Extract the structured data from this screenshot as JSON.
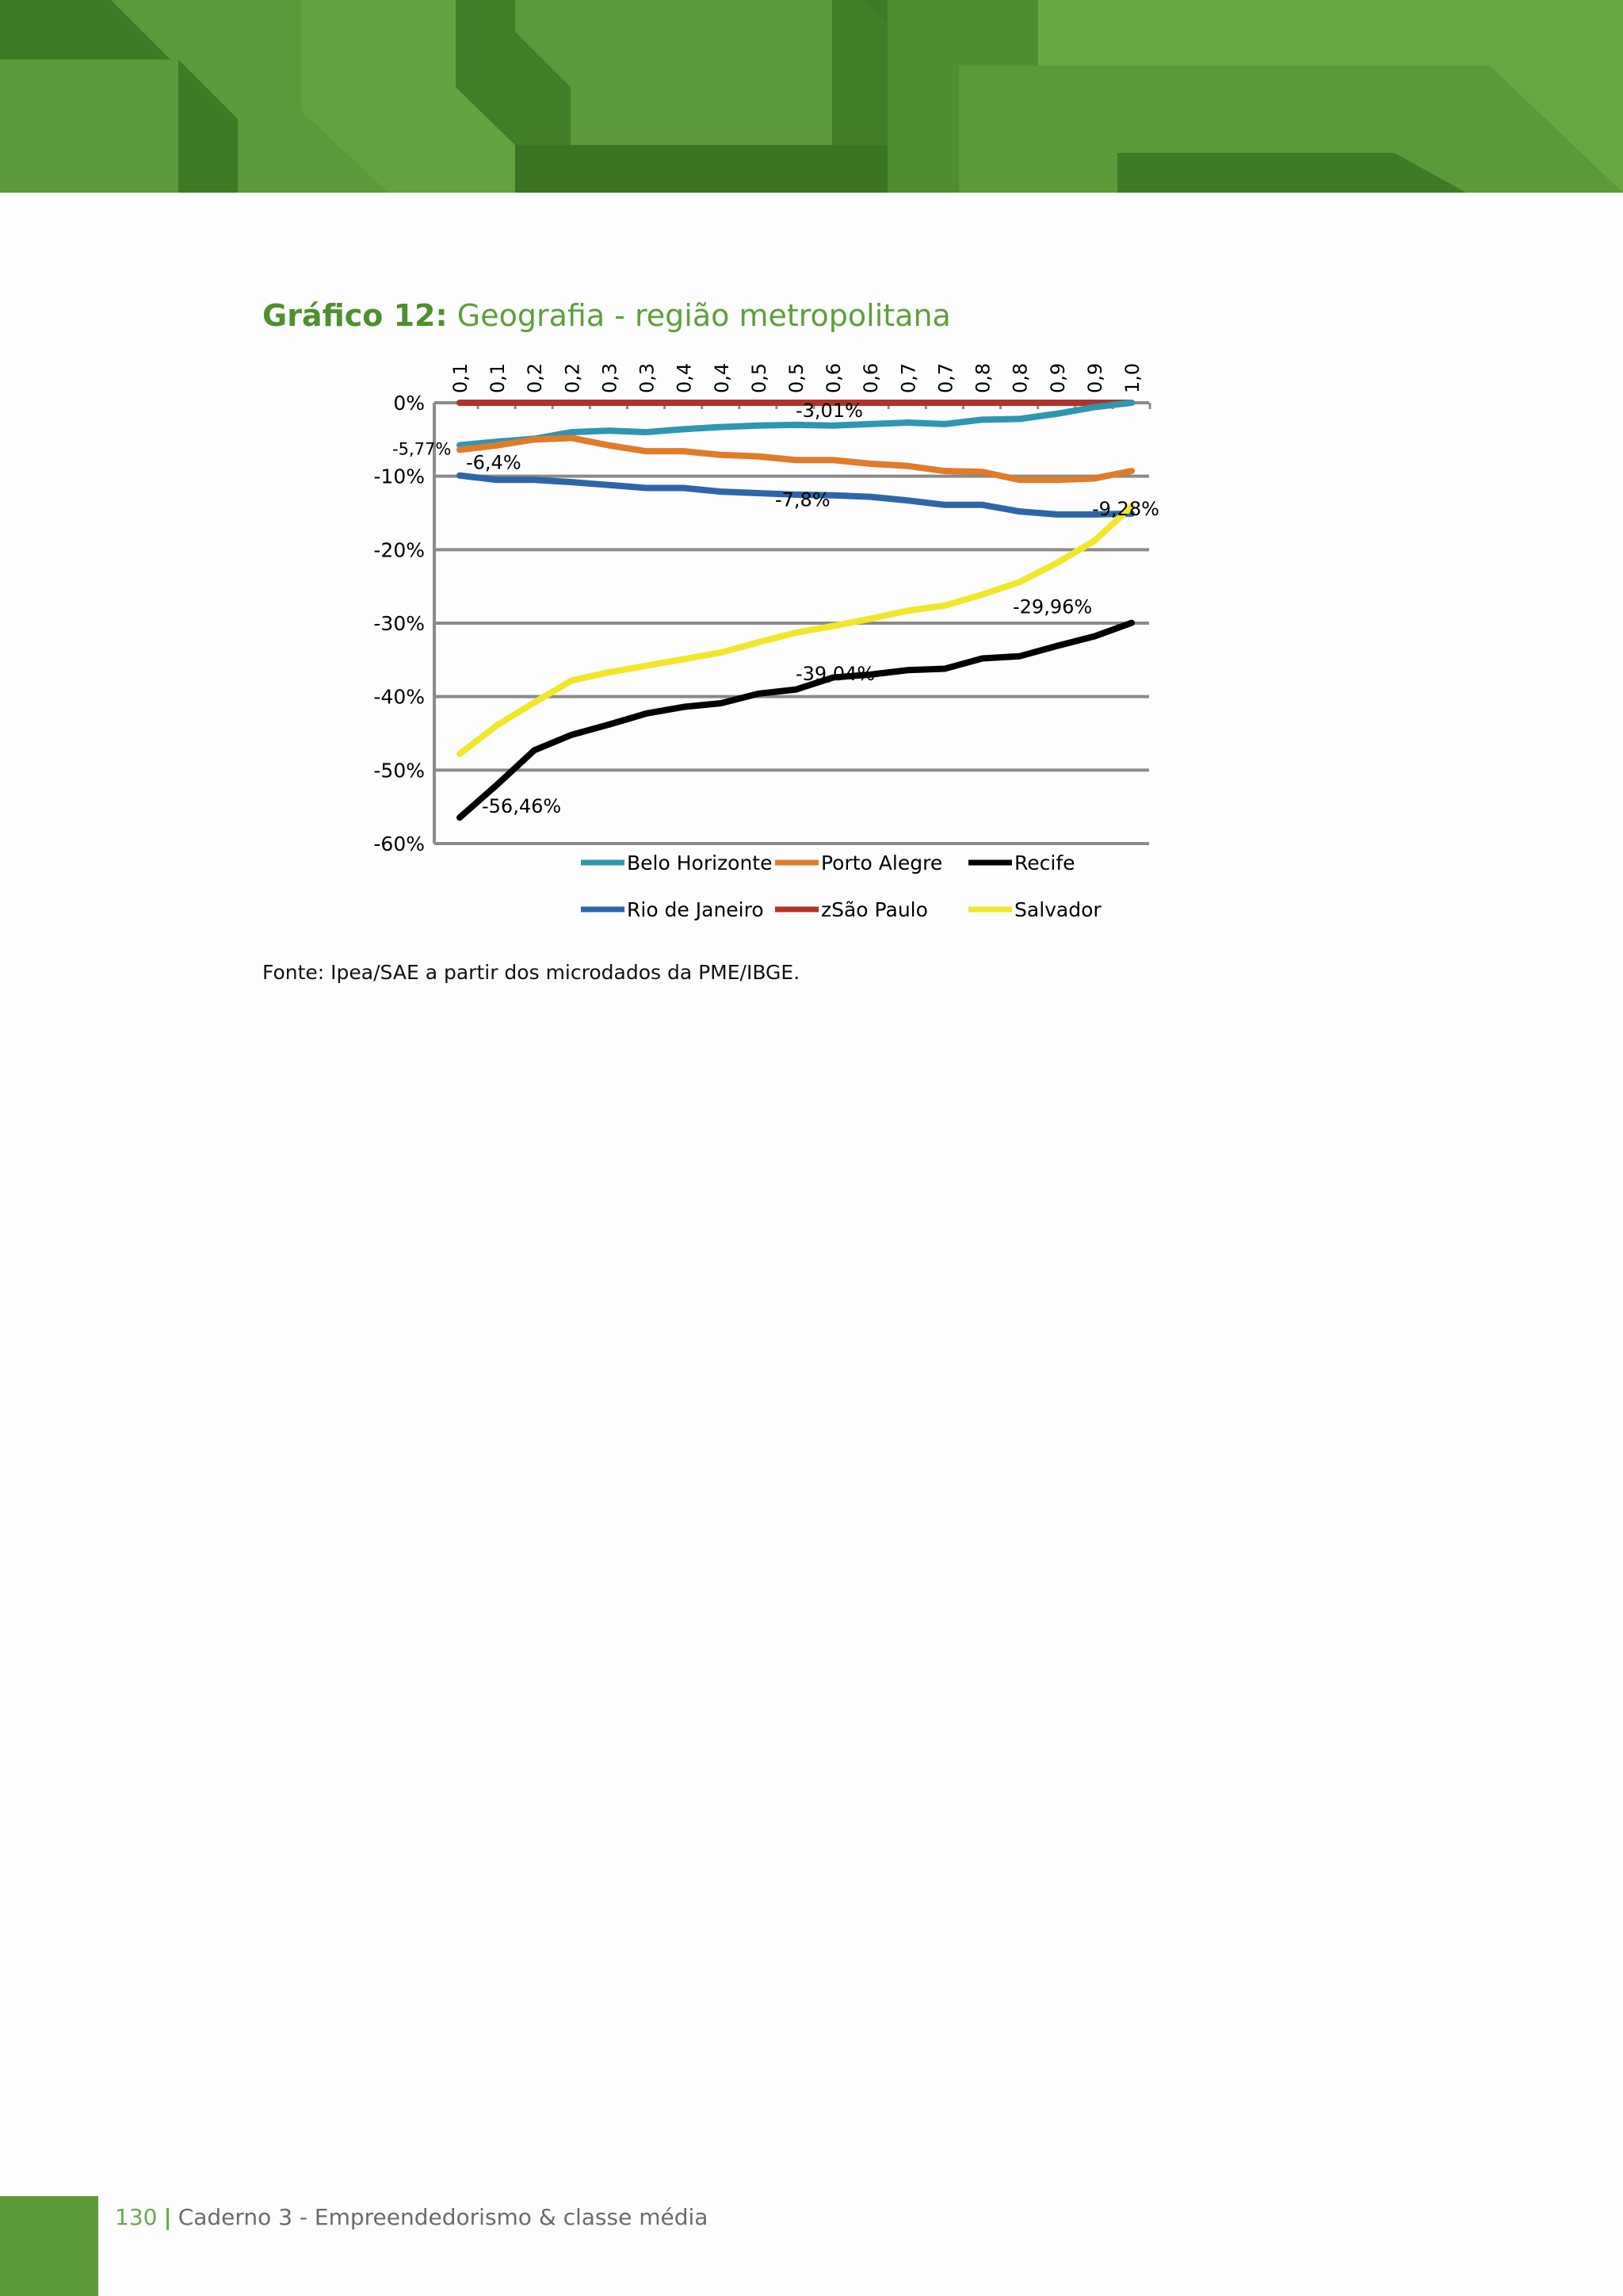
{
  "header": {
    "title_bold": "Gráfico 12:",
    "title_rest": "Geografia - região metropolitana"
  },
  "chart_data": {
    "type": "line",
    "categories": [
      "0,1",
      "0,1",
      "0,2",
      "0,2",
      "0,3",
      "0,3",
      "0,4",
      "0,4",
      "0,5",
      "0,5",
      "0,6",
      "0,6",
      "0,7",
      "0,7",
      "0,8",
      "0,8",
      "0,9",
      "0,9",
      "1,0"
    ],
    "y_ticks": [
      "0%",
      "-10%",
      "-20%",
      "-30%",
      "-40%",
      "-50%",
      "-60%"
    ],
    "ylim": [
      -60,
      0
    ],
    "grid": true,
    "legend_position": "bottom",
    "series": [
      {
        "name": "Belo Horizonte",
        "color": "#2e96b1",
        "values": [
          -5.77,
          -5.3,
          -4.9,
          -4.0,
          -3.8,
          -4.0,
          -3.6,
          -3.3,
          -3.1,
          -3.01,
          -3.1,
          -2.9,
          -2.7,
          -2.9,
          -2.3,
          -2.2,
          -1.5,
          -0.6,
          0.0
        ]
      },
      {
        "name": "Porto Alegre",
        "color": "#e07b2a",
        "values": [
          -6.4,
          -5.8,
          -5.0,
          -4.8,
          -5.8,
          -6.6,
          -6.6,
          -7.1,
          -7.3,
          -7.8,
          -7.8,
          -8.3,
          -8.6,
          -9.3,
          -9.4,
          -10.5,
          -10.5,
          -10.3,
          -9.28
        ]
      },
      {
        "name": "Recife",
        "color": "#000000",
        "values": [
          -56.46,
          -52.0,
          -47.3,
          -45.2,
          -43.8,
          -42.3,
          -41.4,
          -40.9,
          -39.6,
          -39.04,
          -37.4,
          -37.0,
          -36.4,
          -36.2,
          -34.8,
          -34.5,
          -33.1,
          -31.8,
          -29.96
        ]
      },
      {
        "name": "Rio de Janeiro",
        "color": "#2d66a8",
        "values": [
          -9.9,
          -10.5,
          -10.5,
          -10.8,
          -11.2,
          -11.6,
          -11.6,
          -12.1,
          -12.3,
          -12.5,
          -12.6,
          -12.8,
          -13.3,
          -13.9,
          -13.9,
          -14.8,
          -15.2,
          -15.2,
          -15.1
        ]
      },
      {
        "name": "zSão Paulo",
        "color": "#b0332a",
        "values": [
          0,
          0,
          0,
          0,
          0,
          0,
          0,
          0,
          0,
          0,
          0,
          0,
          0,
          0,
          0,
          0,
          0,
          0,
          0
        ]
      },
      {
        "name": "Salvador",
        "color": "#f2e62b",
        "values": [
          -47.8,
          -43.9,
          -40.8,
          -37.8,
          -36.7,
          -35.8,
          -34.9,
          -34.0,
          -32.6,
          -31.3,
          -30.4,
          -29.4,
          -28.3,
          -27.6,
          -26.1,
          -24.4,
          -21.8,
          -18.8,
          -14.1
        ]
      }
    ],
    "annotations": [
      {
        "text": "-5,77%",
        "x_index": 0,
        "y": -5.77
      },
      {
        "text": "-6,4%",
        "x_index": 0,
        "y": -6.4
      },
      {
        "text": "-3,01%",
        "x_index": 9,
        "y": -3.01
      },
      {
        "text": "-7,8%",
        "x_index": 9,
        "y": -7.8
      },
      {
        "text": "-9,28%",
        "x_index": 18,
        "y": -9.28
      },
      {
        "text": "-29,96%",
        "x_index": 18,
        "y": -29.96
      },
      {
        "text": "-39,04%",
        "x_index": 9,
        "y": -39.04
      },
      {
        "text": "-56,46%",
        "x_index": 0,
        "y": -56.46
      }
    ]
  },
  "source": "Fonte: Ipea/SAE a partir dos microdados da PME/IBGE.",
  "footer": {
    "page_number": "130",
    "separator": "|",
    "text": "Caderno 3 - Empreendedorismo & classe média"
  }
}
